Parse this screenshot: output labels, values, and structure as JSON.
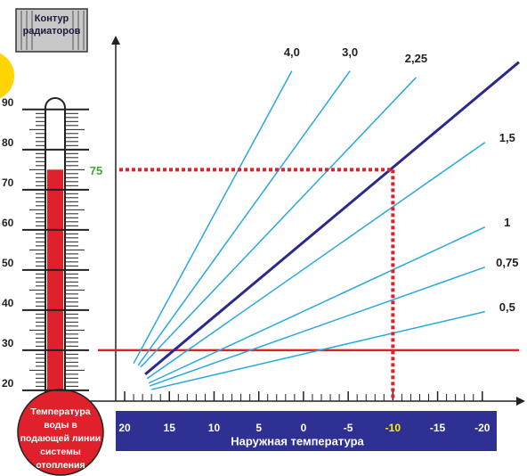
{
  "chart_data": {
    "type": "line",
    "badge": "Контур радиаторов",
    "x_label": "Наружная температура",
    "y_label": "Температура воды в подающей линии системы отопления",
    "xlim": [
      21,
      -24.8
    ],
    "ylim": [
      17.3,
      108.4
    ],
    "xticks": [
      20,
      15,
      10,
      5,
      0,
      -5,
      -10,
      -15,
      -20
    ],
    "yticks": [
      20,
      30,
      40,
      50,
      60,
      70,
      80,
      90
    ],
    "series": [
      {
        "name": "4,0",
        "color": "#29a8e0",
        "line_width": 1.5,
        "x": [
          19,
          1.3
        ],
        "values": [
          26.7,
          99.6
        ]
      },
      {
        "name": "3,0",
        "color": "#29a8e0",
        "line_width": 1.5,
        "x": [
          18.5,
          -5.2
        ],
        "values": [
          26.2,
          99.6
        ]
      },
      {
        "name": "2,25",
        "color": "#29a8e0",
        "line_width": 1.5,
        "x": [
          18.2,
          -12.6
        ],
        "values": [
          25.8,
          98
        ]
      },
      {
        "color": "#2b2a8c",
        "line_width": 3,
        "x": [
          17.7,
          -24.1
        ],
        "values": [
          24,
          101.8
        ]
      },
      {
        "name": "1,5",
        "color": "#29a8e0",
        "line_width": 1.5,
        "x": [
          17.5,
          -20.3
        ],
        "values": [
          22.9,
          81.8
        ]
      },
      {
        "name": "1",
        "color": "#29a8e0",
        "line_width": 1.5,
        "x": [
          17.3,
          -20.3
        ],
        "values": [
          21.8,
          60.7
        ]
      },
      {
        "name": "0,75",
        "color": "#29a8e0",
        "line_width": 1.5,
        "x": [
          17.2,
          -20.3
        ],
        "values": [
          21.1,
          50.7
        ]
      },
      {
        "name": "0,5",
        "color": "#29a8e0",
        "line_width": 1.5,
        "x": [
          17,
          -20.3
        ],
        "values": [
          20.2,
          39.6
        ]
      }
    ],
    "reference_line": {
      "value": 30,
      "color": "#e0202a"
    },
    "reading": {
      "x": -10,
      "y": 75,
      "color": "#e0202a",
      "label_color": "#3aaa35",
      "x_highlight_color": "#ffee00"
    },
    "thermometer": {
      "value": 75,
      "color": "#e0202a"
    },
    "band_color": "#2e3192"
  }
}
